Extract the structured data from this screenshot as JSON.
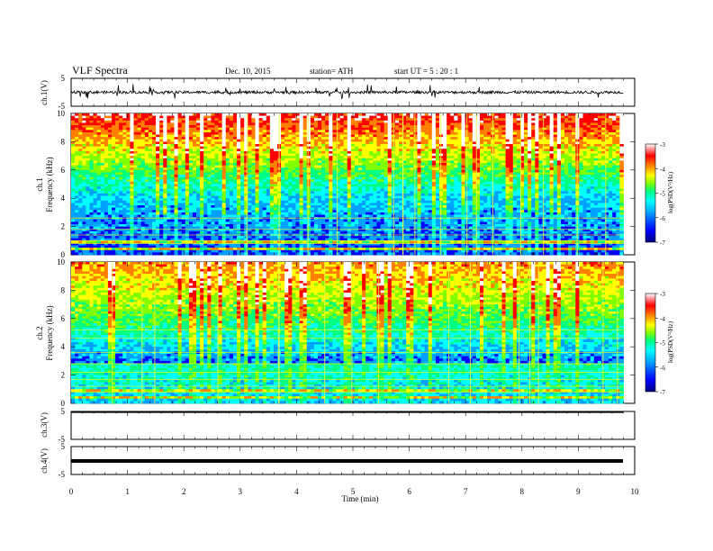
{
  "header": {
    "title": "VLF  Spectra",
    "date": "Dec. 10,  2015",
    "station": "station= ATH",
    "start": "start  UT  =   5  : 20 : 1"
  },
  "colors": {
    "colormap": [
      "#000080",
      "#0000ff",
      "#00a0ff",
      "#00ffff",
      "#00ff80",
      "#80ff00",
      "#ffff00",
      "#ff8000",
      "#ff0000",
      "#ffffff"
    ],
    "trace": "#000000"
  },
  "chart_data": [
    {
      "type": "line",
      "name": "ch1-waveform",
      "ylabel": "ch.1(V)",
      "ylim": [
        -5,
        5
      ],
      "yticks": [
        "5",
        "-5"
      ],
      "xlim": [
        0,
        10
      ],
      "description_values": {
        "baseline_v": 0,
        "noise_amplitude_v": 1
      }
    },
    {
      "type": "heatmap",
      "name": "ch1-spectrogram",
      "ylabel": "ch.1\nFrequency  (kHz)",
      "ylabel_lines": [
        "ch.1",
        "Frequency  (kHz)"
      ],
      "ylim": [
        0,
        10
      ],
      "yticks": [
        "0",
        "2",
        "4",
        "6",
        "8",
        "10"
      ],
      "xlim": [
        0,
        9.8
      ],
      "colorbar": {
        "label": "log(PSD(V²/Hz)",
        "range": [
          -7,
          -3
        ],
        "ticks": [
          "-3",
          "-4",
          "-5",
          "-6",
          "-7"
        ]
      }
    },
    {
      "type": "heatmap",
      "name": "ch2-spectrogram",
      "ylabel_lines": [
        "ch.2",
        "Frequency  (kHz)"
      ],
      "ylim": [
        0,
        10
      ],
      "yticks": [
        "0",
        "2",
        "4",
        "6",
        "8",
        "10"
      ],
      "xlim": [
        0,
        9.8
      ],
      "colorbar": {
        "label": "log(PSD(V²/Hz)",
        "range": [
          -7,
          -3
        ],
        "ticks": [
          "-3",
          "-4",
          "-5",
          "-6",
          "-7"
        ]
      }
    },
    {
      "type": "line",
      "name": "ch3-waveform",
      "ylabel": "ch.3(V)",
      "ylim": [
        -5,
        5
      ],
      "yticks": [
        "5",
        "-5"
      ],
      "xlim": [
        0,
        10
      ],
      "description_values": {
        "baseline_v": 5
      }
    },
    {
      "type": "line",
      "name": "ch4-waveform",
      "ylabel": "ch.4(V)",
      "ylim": [
        -5,
        5
      ],
      "yticks": [
        "5",
        "-5"
      ],
      "xlim": [
        0,
        10
      ],
      "description_values": {
        "baseline_v": 0
      }
    }
  ],
  "xaxis": {
    "label": "Time  (min)",
    "ticks": [
      "0",
      "1",
      "2",
      "3",
      "4",
      "5",
      "6",
      "7",
      "8",
      "9",
      "10"
    ]
  }
}
